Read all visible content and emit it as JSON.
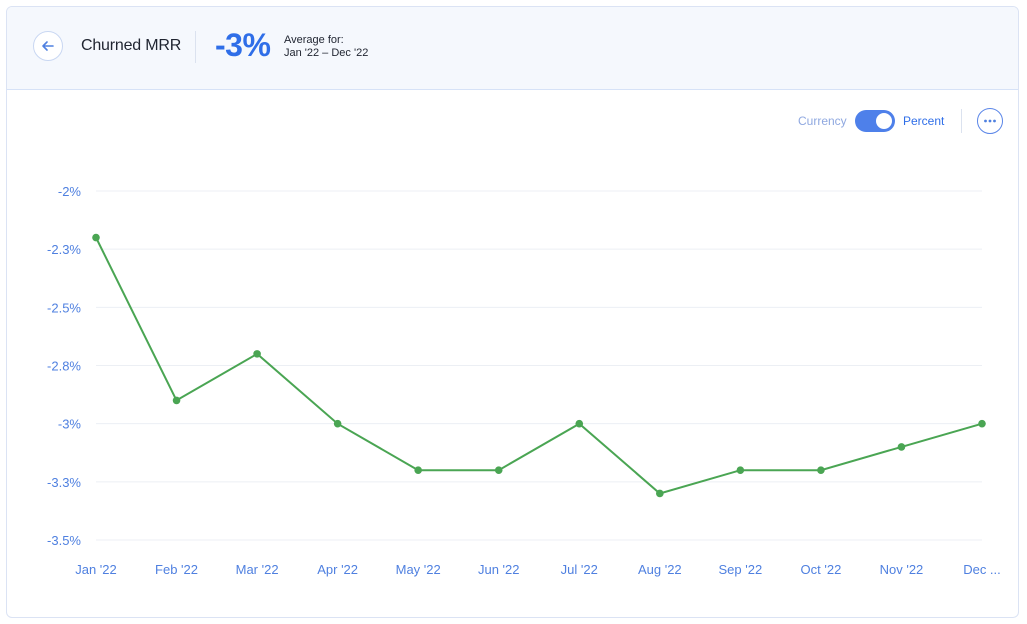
{
  "header": {
    "title": "Churned MRR",
    "big_value": "-3%",
    "average_label": "Average for:",
    "average_range": "Jan '22 – Dec '22"
  },
  "controls": {
    "toggle_left_label": "Currency",
    "toggle_right_label": "Percent",
    "toggle_state": "Percent"
  },
  "colors": {
    "accent": "#2f6ee8",
    "line": "#4aa553",
    "axis_text": "#4f80e0",
    "grid": "#eceff4"
  },
  "chart_data": {
    "type": "line",
    "categories": [
      "Jan '22",
      "Feb '22",
      "Mar '22",
      "Apr '22",
      "May '22",
      "Jun '22",
      "Jul '22",
      "Aug '22",
      "Sep '22",
      "Oct '22",
      "Nov '22",
      "Dec ..."
    ],
    "series": [
      {
        "values": [
          -2.2,
          -2.9,
          -2.7,
          -3.0,
          -3.2,
          -3.2,
          -3.0,
          -3.3,
          -3.2,
          -3.2,
          -3.1,
          -3.0
        ]
      }
    ],
    "y_ticks": [
      {
        "value": -2.0,
        "label": "-2%"
      },
      {
        "value": -2.25,
        "label": "-2.3%"
      },
      {
        "value": -2.5,
        "label": "-2.5%"
      },
      {
        "value": -2.75,
        "label": "-2.8%"
      },
      {
        "value": -3.0,
        "label": "-3%"
      },
      {
        "value": -3.25,
        "label": "-3.3%"
      },
      {
        "value": -3.5,
        "label": "-3.5%"
      }
    ],
    "ylim": [
      -3.5,
      -2.0
    ],
    "grid": true
  }
}
